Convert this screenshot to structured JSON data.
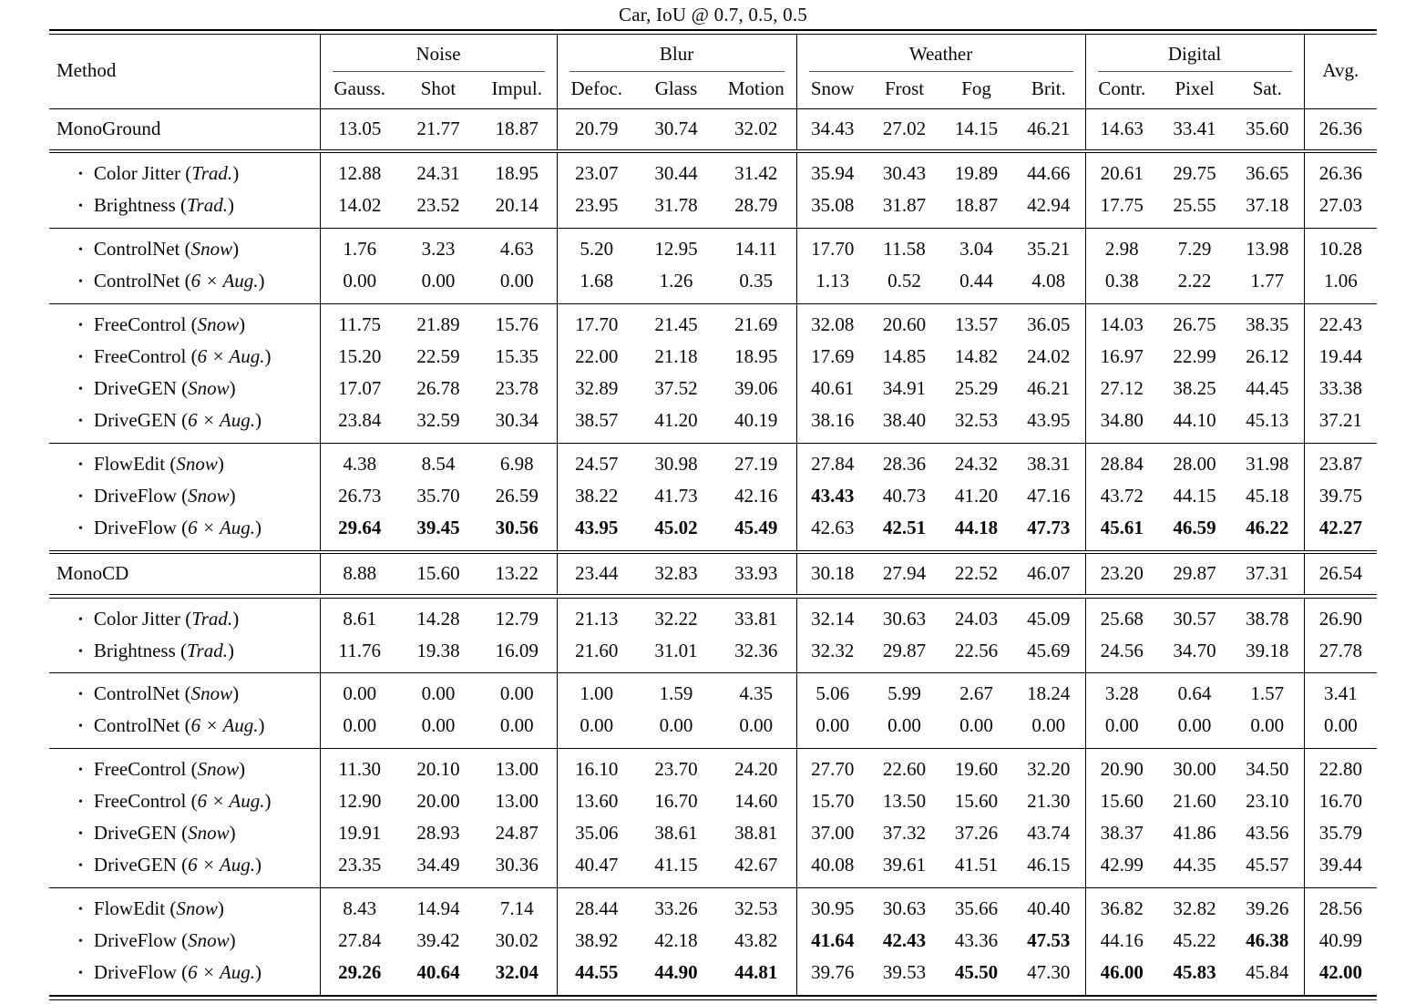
{
  "title": "Car, IoU @ 0.7, 0.5, 0.5",
  "table": {
    "method_header": "Method",
    "avg_header": "Avg.",
    "groups": [
      {
        "label": "Noise",
        "cols": [
          "Gauss.",
          "Shot",
          "Impul."
        ]
      },
      {
        "label": "Blur",
        "cols": [
          "Defoc.",
          "Glass",
          "Motion"
        ]
      },
      {
        "label": "Weather",
        "cols": [
          "Snow",
          "Frost",
          "Fog",
          "Brit."
        ]
      },
      {
        "label": "Digital",
        "cols": [
          "Contr.",
          "Pixel",
          "Sat."
        ]
      }
    ],
    "blocks": [
      {
        "backbone": {
          "method": "MonoGround",
          "values": [
            "13.05",
            "21.77",
            "18.87",
            "20.79",
            "30.74",
            "32.02",
            "34.43",
            "27.02",
            "14.15",
            "46.21",
            "14.63",
            "33.41",
            "35.60",
            "26.36"
          ],
          "bold": []
        },
        "sections": [
          [
            {
              "method": "Color Jitter",
              "variant": "Trad.",
              "values": [
                "12.88",
                "24.31",
                "18.95",
                "23.07",
                "30.44",
                "31.42",
                "35.94",
                "30.43",
                "19.89",
                "44.66",
                "20.61",
                "29.75",
                "36.65",
                "26.36"
              ],
              "bold": []
            },
            {
              "method": "Brightness",
              "variant": "Trad.",
              "values": [
                "14.02",
                "23.52",
                "20.14",
                "23.95",
                "31.78",
                "28.79",
                "35.08",
                "31.87",
                "18.87",
                "42.94",
                "17.75",
                "25.55",
                "37.18",
                "27.03"
              ],
              "bold": []
            }
          ],
          [
            {
              "method": "ControlNet",
              "variant": "Snow",
              "values": [
                "1.76",
                "3.23",
                "4.63",
                "5.20",
                "12.95",
                "14.11",
                "17.70",
                "11.58",
                "3.04",
                "35.21",
                "2.98",
                "7.29",
                "13.98",
                "10.28"
              ],
              "bold": []
            },
            {
              "method": "ControlNet",
              "variant": "6 × Aug.",
              "values": [
                "0.00",
                "0.00",
                "0.00",
                "1.68",
                "1.26",
                "0.35",
                "1.13",
                "0.52",
                "0.44",
                "4.08",
                "0.38",
                "2.22",
                "1.77",
                "1.06"
              ],
              "bold": []
            }
          ],
          [
            {
              "method": "FreeControl",
              "variant": "Snow",
              "values": [
                "11.75",
                "21.89",
                "15.76",
                "17.70",
                "21.45",
                "21.69",
                "32.08",
                "20.60",
                "13.57",
                "36.05",
                "14.03",
                "26.75",
                "38.35",
                "22.43"
              ],
              "bold": []
            },
            {
              "method": "FreeControl",
              "variant": "6 × Aug.",
              "values": [
                "15.20",
                "22.59",
                "15.35",
                "22.00",
                "21.18",
                "18.95",
                "17.69",
                "14.85",
                "14.82",
                "24.02",
                "16.97",
                "22.99",
                "26.12",
                "19.44"
              ],
              "bold": []
            },
            {
              "method": "DriveGEN",
              "variant": "Snow",
              "values": [
                "17.07",
                "26.78",
                "23.78",
                "32.89",
                "37.52",
                "39.06",
                "40.61",
                "34.91",
                "25.29",
                "46.21",
                "27.12",
                "38.25",
                "44.45",
                "33.38"
              ],
              "bold": []
            },
            {
              "method": "DriveGEN",
              "variant": "6 × Aug.",
              "values": [
                "23.84",
                "32.59",
                "30.34",
                "38.57",
                "41.20",
                "40.19",
                "38.16",
                "38.40",
                "32.53",
                "43.95",
                "34.80",
                "44.10",
                "45.13",
                "37.21"
              ],
              "bold": []
            }
          ],
          [
            {
              "method": "FlowEdit",
              "variant": "Snow",
              "values": [
                "4.38",
                "8.54",
                "6.98",
                "24.57",
                "30.98",
                "27.19",
                "27.84",
                "28.36",
                "24.32",
                "38.31",
                "28.84",
                "28.00",
                "31.98",
                "23.87"
              ],
              "bold": []
            },
            {
              "method": "DriveFlow",
              "variant": "Snow",
              "values": [
                "26.73",
                "35.70",
                "26.59",
                "38.22",
                "41.73",
                "42.16",
                "43.43",
                "40.73",
                "41.20",
                "47.16",
                "43.72",
                "44.15",
                "45.18",
                "39.75"
              ],
              "bold": [
                6
              ]
            },
            {
              "method": "DriveFlow",
              "variant": "6 × Aug.",
              "values": [
                "29.64",
                "39.45",
                "30.56",
                "43.95",
                "45.02",
                "45.49",
                "42.63",
                "42.51",
                "44.18",
                "47.73",
                "45.61",
                "46.59",
                "46.22",
                "42.27"
              ],
              "bold": [
                0,
                1,
                2,
                3,
                4,
                5,
                7,
                8,
                9,
                10,
                11,
                12,
                13
              ]
            }
          ]
        ]
      },
      {
        "backbone": {
          "method": "MonoCD",
          "values": [
            "8.88",
            "15.60",
            "13.22",
            "23.44",
            "32.83",
            "33.93",
            "30.18",
            "27.94",
            "22.52",
            "46.07",
            "23.20",
            "29.87",
            "37.31",
            "26.54"
          ],
          "bold": []
        },
        "sections": [
          [
            {
              "method": "Color Jitter",
              "variant": "Trad.",
              "values": [
                "8.61",
                "14.28",
                "12.79",
                "21.13",
                "32.22",
                "33.81",
                "32.14",
                "30.63",
                "24.03",
                "45.09",
                "25.68",
                "30.57",
                "38.78",
                "26.90"
              ],
              "bold": []
            },
            {
              "method": "Brightness",
              "variant": "Trad.",
              "values": [
                "11.76",
                "19.38",
                "16.09",
                "21.60",
                "31.01",
                "32.36",
                "32.32",
                "29.87",
                "22.56",
                "45.69",
                "24.56",
                "34.70",
                "39.18",
                "27.78"
              ],
              "bold": []
            }
          ],
          [
            {
              "method": "ControlNet",
              "variant": "Snow",
              "values": [
                "0.00",
                "0.00",
                "0.00",
                "1.00",
                "1.59",
                "4.35",
                "5.06",
                "5.99",
                "2.67",
                "18.24",
                "3.28",
                "0.64",
                "1.57",
                "3.41"
              ],
              "bold": []
            },
            {
              "method": "ControlNet",
              "variant": "6 × Aug.",
              "values": [
                "0.00",
                "0.00",
                "0.00",
                "0.00",
                "0.00",
                "0.00",
                "0.00",
                "0.00",
                "0.00",
                "0.00",
                "0.00",
                "0.00",
                "0.00",
                "0.00"
              ],
              "bold": []
            }
          ],
          [
            {
              "method": "FreeControl",
              "variant": "Snow",
              "values": [
                "11.30",
                "20.10",
                "13.00",
                "16.10",
                "23.70",
                "24.20",
                "27.70",
                "22.60",
                "19.60",
                "32.20",
                "20.90",
                "30.00",
                "34.50",
                "22.80"
              ],
              "bold": []
            },
            {
              "method": "FreeControl",
              "variant": "6 × Aug.",
              "values": [
                "12.90",
                "20.00",
                "13.00",
                "13.60",
                "16.70",
                "14.60",
                "15.70",
                "13.50",
                "15.60",
                "21.30",
                "15.60",
                "21.60",
                "23.10",
                "16.70"
              ],
              "bold": []
            },
            {
              "method": "DriveGEN",
              "variant": "Snow",
              "values": [
                "19.91",
                "28.93",
                "24.87",
                "35.06",
                "38.61",
                "38.81",
                "37.00",
                "37.32",
                "37.26",
                "43.74",
                "38.37",
                "41.86",
                "43.56",
                "35.79"
              ],
              "bold": []
            },
            {
              "method": "DriveGEN",
              "variant": "6 × Aug.",
              "values": [
                "23.35",
                "34.49",
                "30.36",
                "40.47",
                "41.15",
                "42.67",
                "40.08",
                "39.61",
                "41.51",
                "46.15",
                "42.99",
                "44.35",
                "45.57",
                "39.44"
              ],
              "bold": []
            }
          ],
          [
            {
              "method": "FlowEdit",
              "variant": "Snow",
              "values": [
                "8.43",
                "14.94",
                "7.14",
                "28.44",
                "33.26",
                "32.53",
                "30.95",
                "30.63",
                "35.66",
                "40.40",
                "36.82",
                "32.82",
                "39.26",
                "28.56"
              ],
              "bold": []
            },
            {
              "method": "DriveFlow",
              "variant": "Snow",
              "values": [
                "27.84",
                "39.42",
                "30.02",
                "38.92",
                "42.18",
                "43.82",
                "41.64",
                "42.43",
                "43.36",
                "47.53",
                "44.16",
                "45.22",
                "46.38",
                "40.99"
              ],
              "bold": [
                6,
                7,
                9,
                12
              ]
            },
            {
              "method": "DriveFlow",
              "variant": "6 × Aug.",
              "values": [
                "29.26",
                "40.64",
                "32.04",
                "44.55",
                "44.90",
                "44.81",
                "39.76",
                "39.53",
                "45.50",
                "47.30",
                "46.00",
                "45.83",
                "45.84",
                "42.00"
              ],
              "bold": [
                0,
                1,
                2,
                3,
                4,
                5,
                8,
                10,
                11,
                13
              ]
            }
          ]
        ]
      }
    ]
  }
}
